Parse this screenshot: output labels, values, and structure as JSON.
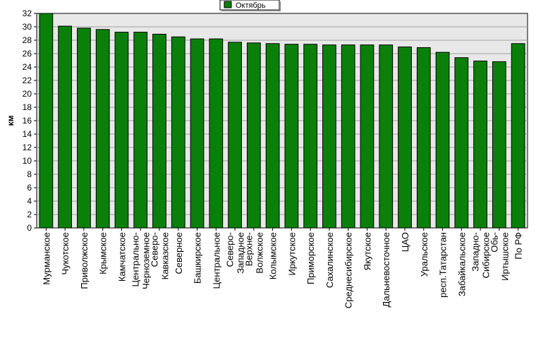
{
  "chart_data": {
    "type": "bar",
    "ylabel": "км",
    "ylim": [
      0,
      32
    ],
    "y_ticks": [
      0,
      2,
      4,
      6,
      8,
      10,
      12,
      14,
      16,
      18,
      20,
      22,
      24,
      26,
      28,
      30,
      32
    ],
    "grid": true,
    "legend_position": "top-center",
    "bar_color": "#0a800a",
    "plot_background": "#e8e8e8",
    "series": [
      {
        "name": "Октябрь",
        "values": [
          32.0,
          30.1,
          29.8,
          29.6,
          29.2,
          29.2,
          28.9,
          28.5,
          28.2,
          28.2,
          27.7,
          27.6,
          27.5,
          27.4,
          27.4,
          27.3,
          27.3,
          27.3,
          27.3,
          27.0,
          26.9,
          26.2,
          25.4,
          24.9,
          24.8,
          27.5
        ]
      }
    ],
    "categories": [
      [
        "Мурманское"
      ],
      [
        "Чукотское"
      ],
      [
        "Приволжское"
      ],
      [
        "Крымское"
      ],
      [
        "Камчатское"
      ],
      [
        "Центрально-",
        "Черноземное"
      ],
      [
        "Северо-",
        "Кавказское"
      ],
      [
        "Северное"
      ],
      [
        "Башкирское"
      ],
      [
        "Центральное"
      ],
      [
        "Северо-",
        "Западное"
      ],
      [
        "Верхне-",
        "Волжское"
      ],
      [
        "Колымское"
      ],
      [
        "Иркутское"
      ],
      [
        "Приморское"
      ],
      [
        "Сахалинское"
      ],
      [
        "Среднесибирское"
      ],
      [
        "Якутское"
      ],
      [
        "Дальневосточное"
      ],
      [
        "ЦАО"
      ],
      [
        "Уральское"
      ],
      [
        "респ.Татарстан"
      ],
      [
        "Забайкальское"
      ],
      [
        "Западно-",
        "Сибирское"
      ],
      [
        "Обь-",
        "Иртышское"
      ],
      [
        "По РФ"
      ]
    ]
  }
}
